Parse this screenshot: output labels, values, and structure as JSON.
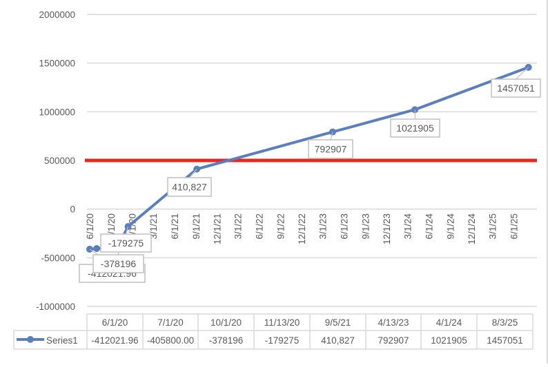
{
  "chart_data": {
    "type": "line",
    "title": "",
    "xlabel": "",
    "ylabel": "",
    "ylim": [
      -1000000,
      2000000
    ],
    "y_ticks": [
      "2000000",
      "1500000",
      "1000000",
      "500000",
      "0",
      "-500000",
      "-1000000"
    ],
    "x_axis_type": "date",
    "x_ticks": [
      "6/1/20",
      "9/1/20",
      "12/1/20",
      "3/1/21",
      "6/1/21",
      "9/1/21",
      "12/1/21",
      "3/1/22",
      "6/1/22",
      "9/1/22",
      "12/1/22",
      "3/1/23",
      "6/1/23",
      "9/1/23",
      "12/1/23",
      "3/1/24",
      "6/1/24",
      "9/1/24",
      "12/1/24",
      "3/1/25",
      "6/1/25"
    ],
    "grid": true,
    "legend": "data-table",
    "series": [
      {
        "name": "Series1",
        "color": "#5a7fbc",
        "x": [
          "2020-06-01",
          "2020-07-01",
          "2020-10-01",
          "2020-11-13",
          "2021-09-05",
          "2023-04-13",
          "2024-04-01",
          "2025-08-03"
        ],
        "values": [
          -412021.96,
          -405800.0,
          -378196,
          -179275,
          410827,
          792907,
          1021905,
          1457051
        ],
        "data_labels": [
          "-412021.96",
          null,
          "-378196",
          "-179275",
          "410,827",
          "792907",
          "1021905",
          "1457051"
        ]
      }
    ],
    "reference_line": {
      "value": 500000,
      "color": "#e8281e"
    },
    "data_table": {
      "headers": [
        "6/1/20",
        "7/1/20",
        "10/1/20",
        "11/13/20",
        "9/5/21",
        "4/13/23",
        "4/1/24",
        "8/3/25"
      ],
      "series_label": "Series1",
      "cells": [
        "-412021.96",
        "-405800.00",
        "-378196",
        "-179275",
        "410,827",
        "792907",
        "1021905",
        "1457051"
      ]
    }
  }
}
